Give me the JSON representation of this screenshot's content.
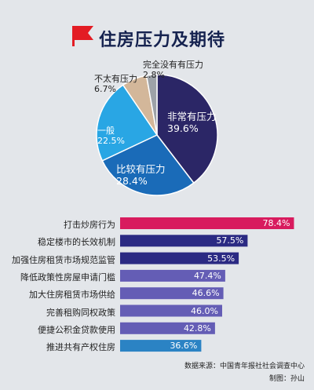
{
  "title": "住房压力及期待",
  "colors": {
    "flag": "#e31c24",
    "title": "#15224f",
    "pie": [
      "#2b2666",
      "#1a6bb8",
      "#29a6e4",
      "#d3b79a",
      "#9da2a8"
    ],
    "bars": [
      "#d81b5e",
      "#2b2a83",
      "#2b2a83",
      "#645db5",
      "#645db5",
      "#645db5",
      "#645db5",
      "#2b83c4"
    ]
  },
  "chart_data": [
    {
      "type": "pie",
      "title": "住房压力及期待",
      "slices": [
        {
          "label": "非常有压力",
          "value": 39.6,
          "display": "39.6%"
        },
        {
          "label": "比较有压力",
          "value": 28.4,
          "display": "28.4%"
        },
        {
          "label": "一般",
          "value": 22.5,
          "display": "22.5%"
        },
        {
          "label": "不太有压力",
          "value": 6.7,
          "display": "6.7%"
        },
        {
          "label": "完全没有有压力",
          "value": 2.8,
          "display": "2.8%"
        }
      ]
    },
    {
      "type": "bar",
      "orientation": "horizontal",
      "categories": [
        "打击炒房行为",
        "稳定楼市的长效机制",
        "加强住房租赁市场规范监管",
        "降低政策性房屋申请门槛",
        "加大住房租赁市场供给",
        "完善租购同权政策",
        "便捷公积金贷款使用",
        "推进共有产权住房"
      ],
      "values": [
        78.4,
        57.5,
        53.5,
        47.4,
        46.6,
        46.0,
        42.8,
        36.6
      ],
      "value_labels": [
        "78.4%",
        "57.5%",
        "53.5%",
        "47.4%",
        "46.6%",
        "46.0%",
        "42.8%",
        "36.6%"
      ],
      "xlim": [
        0,
        80
      ]
    }
  ],
  "footer": {
    "source": "数据来源：中国青年报社社会调查中心",
    "credit": "制图：孙山"
  }
}
